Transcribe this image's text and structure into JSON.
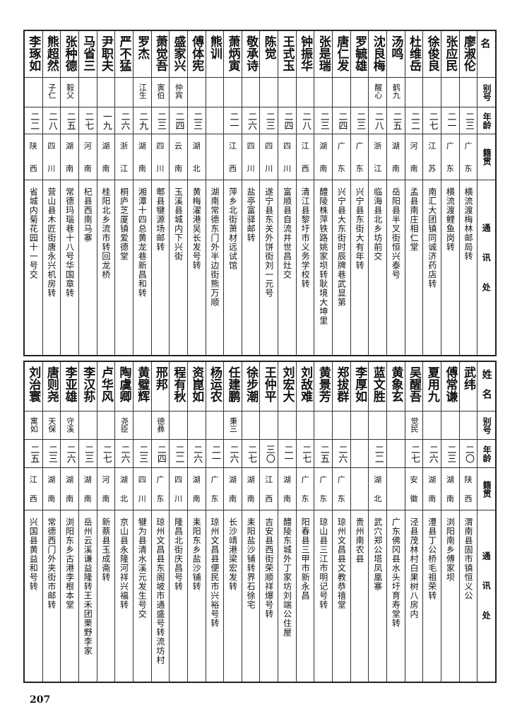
{
  "header": {
    "name": "姓名",
    "alias": "别号",
    "age": "年龄",
    "native": "籍贯",
    "address": "通讯处"
  },
  "tables": [
    {
      "rows": [
        {
          "name": "廖淑伦",
          "alias": "",
          "age": "二三",
          "native": [
            "广",
            "东"
          ],
          "address": "横流渡梅林邮局转"
        },
        {
          "name": "张应民",
          "alias": "",
          "age": "二一",
          "native": [
            "广",
            "东"
          ],
          "address": "横流渡鲤鱼岗转"
        },
        {
          "name": "徐俊良",
          "alias": "",
          "age": "二七",
          "native": [
            "江",
            "苏"
          ],
          "address": "南汇大团镇同诚济药店转"
        },
        {
          "name": "杜维岳",
          "alias": "",
          "age": "二二",
          "native": [
            "河",
            "南"
          ],
          "address": "孟县南庄相仁堂"
        },
        {
          "name": "汤鸣",
          "alias": "鹤九",
          "age": "二五",
          "native": [
            "湖",
            "南"
          ],
          "address": "岳阳县半叉街恒兴泰号"
        },
        {
          "name": "沈良梅",
          "alias": "醒心",
          "age": "二八",
          "native": [
            "浙",
            "江"
          ],
          "address": "临海县北乡坊前交"
        },
        {
          "name": "罗毓雄",
          "alias": "",
          "age": "二三",
          "native": [
            "广",
            "东"
          ],
          "address": "兴宁县东街大有年转"
        },
        {
          "name": "唐仁发",
          "alias": "",
          "age": "二四",
          "native": [
            "广",
            "东"
          ],
          "address": "兴宁县大东街时辰牌巷武显第"
        },
        {
          "name": "张是瑞",
          "alias": "",
          "age": "二三",
          "native": [
            "湖",
            "南"
          ],
          "address": "醴陵株萍铁路姚家坝转耿境大坤里"
        },
        {
          "name": "钟振华",
          "alias": "",
          "age": "二八",
          "native": [
            "江",
            "西"
          ],
          "address": "清江县黎圩市义务学校转"
        },
        {
          "name": "王式玉",
          "alias": "",
          "age": "二四",
          "native": [
            "四",
            "川"
          ],
          "address": "富顺县自流井世昌灶交"
        },
        {
          "name": "陈觉",
          "alias": "",
          "age": "二三",
          "native": [
            "四",
            "川"
          ],
          "address": "遂宁县东关外饼街刘一元号"
        },
        {
          "name": "敬承诗",
          "alias": "",
          "age": "二六",
          "native": [
            "四",
            "川"
          ],
          "address": "盐亭富驿邮转"
        },
        {
          "name": "萧炳寅",
          "alias": "",
          "age": "二一",
          "native": [
            "江",
            "西"
          ],
          "address": "萍乡北街萧材远试馆"
        },
        {
          "name": "熊训",
          "alias": "",
          "age": "",
          "native": [
            "",
            ""
          ],
          "address": "湖南常德东门外半边街熊万顺"
        },
        {
          "name": "傅体宪",
          "alias": "",
          "age": "二三",
          "native": [
            "湖",
            "北"
          ],
          "address": "黄梅濯港吴长发号转"
        },
        {
          "name": "盛家兴",
          "alias": "仲宾",
          "age": "二四",
          "native": [
            "云",
            "南"
          ],
          "address": "玉溪县城内下兴街"
        },
        {
          "name": "萧觉吾",
          "alias": "寅伯",
          "age": "二三",
          "native": [
            "四",
            "川"
          ],
          "address": "郫县犍源场邮转"
        },
        {
          "name": "罗杰",
          "alias": "江生",
          "age": "二九",
          "native": [
            "湖",
            "南"
          ],
          "address": "湘潭十四总黄龙巷新昌和转"
        },
        {
          "name": "严不猛",
          "alias": "",
          "age": "二六",
          "native": [
            "浙",
            "江"
          ],
          "address": "桐庐芝厦镇爱德堂"
        },
        {
          "name": "尹职夫",
          "alias": "",
          "age": "一九",
          "native": [
            "湖",
            "南"
          ],
          "address": "桂阳北乡流市转回龙桥"
        },
        {
          "name": "马省三",
          "alias": "",
          "age": "二七",
          "native": [
            "河",
            "南"
          ],
          "address": "杞县西南马寨"
        },
        {
          "name": "张种德",
          "alias": "毅父",
          "age": "二五",
          "native": [
            "湖",
            "南"
          ],
          "address": "常德玛瑙巷十八号华国章转"
        },
        {
          "name": "熊超然",
          "alias": "子仁",
          "age": "二八",
          "native": [
            "四",
            "川"
          ],
          "address": "营山县木匠街唐永兴机房转"
        },
        {
          "name": "李琢如",
          "alias": "",
          "age": "二二",
          "native": [
            "陕",
            "西"
          ],
          "address": "省城内菊花园十一号交"
        }
      ]
    },
    {
      "rows": [
        {
          "name": "武纬",
          "alias": "",
          "age": "二〇",
          "native": [
            "陕",
            "西"
          ],
          "address": "渭南县固市镇恒义公"
        },
        {
          "name": "傅常谦",
          "alias": "",
          "age": "二三",
          "native": [
            "湖",
            "南"
          ],
          "address": "浏阳南乡傅家坝"
        },
        {
          "name": "夏用九",
          "alias": "",
          "age": "二六",
          "native": [
            "湖",
            "南"
          ],
          "address": "澧县丁公桥毛祖荣转"
        },
        {
          "name": "吴醒吾",
          "alias": "觉民",
          "age": "二七",
          "native": [
            "安",
            "徽"
          ],
          "address": "泾县茂林村白果树八房内"
        },
        {
          "name": "黄象玄",
          "alias": "",
          "age": "",
          "native": [
            "",
            ""
          ],
          "address": "广东佛冈县水头圩育寿堂转"
        },
        {
          "name": "蓝文胜",
          "alias": "",
          "age": "二二",
          "native": [
            "湖",
            "北"
          ],
          "address": "武穴郑公塔凤凰寨"
        },
        {
          "name": "李厚如",
          "alias": "",
          "age": "",
          "native": [
            "",
            ""
          ],
          "address": "贵州南农县"
        },
        {
          "name": "郑拔群",
          "alias": "",
          "age": "二六",
          "native": [
            "广",
            "东"
          ],
          "address": "琼州文昌县文教恭禧堂"
        },
        {
          "name": "黄景芳",
          "alias": "",
          "age": "二五",
          "native": [
            "广",
            "东"
          ],
          "address": "琼山县三江市明记号转"
        },
        {
          "name": "刘敌难",
          "alias": "",
          "age": "二七",
          "native": [
            "广",
            "东"
          ],
          "address": "阳春县三甲市新永昌"
        },
        {
          "name": "刘宏大",
          "alias": "",
          "age": "二一",
          "native": [
            "湖",
            "南"
          ],
          "address": "醴陵东城外丁家坊刘端公住屋"
        },
        {
          "name": "王仲平",
          "alias": "",
          "age": "三〇",
          "native": [
            "江",
            "西"
          ],
          "address": "吉安县西街荣顺祥爆号转"
        },
        {
          "name": "徐步潮",
          "alias": "",
          "age": "二七",
          "native": [
            "湖",
            "南"
          ],
          "address": "耒阳盐沙铺转界石徐宅"
        },
        {
          "name": "任建鹏",
          "alias": "秉三",
          "age": "二六",
          "native": [
            "湖",
            "南"
          ],
          "address": "长沙靖港梁宏发转"
        },
        {
          "name": "杨运农",
          "alias": "",
          "age": "二一",
          "native": [
            "广",
            "东"
          ],
          "address": "琼州文昌县便民市兴裕号转"
        },
        {
          "name": "资崑如",
          "alias": "",
          "age": "二六",
          "native": [
            "湖",
            "南"
          ],
          "address": "耒阳东乡盐沙铺转"
        },
        {
          "name": "程有秋",
          "alias": "",
          "age": "二二",
          "native": [
            "四",
            "川"
          ],
          "address": "隆昌北街庆昌号转"
        },
        {
          "name": "邢邦",
          "alias": "德彝",
          "age": "二四",
          "native": [
            "广",
            "东"
          ],
          "address": "琼州文昌县东阁坡市通盛号转流坊村"
        },
        {
          "name": "黄璧辉",
          "alias": "",
          "age": "二三",
          "native": [
            "四",
            "川"
          ],
          "address": "犍为县清水溪元发生号交"
        },
        {
          "name": "陶虞卿",
          "alias": "尧臣",
          "age": "二六",
          "native": [
            "湖",
            "北"
          ],
          "address": "京山县永隆河祥兴福转"
        },
        {
          "name": "卢华风",
          "alias": "",
          "age": "二七",
          "native": [
            "河",
            "南"
          ],
          "address": "新蔡县玉成斋转"
        },
        {
          "name": "李汉荪",
          "alias": "",
          "age": "二三",
          "native": [
            "湖",
            "南"
          ],
          "address": "岳州云溪谦益隆转王禾团栗野李家"
        },
        {
          "name": "李亚雄",
          "alias": "守溪",
          "age": "二六",
          "native": [
            "湖",
            "南"
          ],
          "address": "浏阳东乡古港李根本堂"
        },
        {
          "name": "唐则尧",
          "alias": "天保",
          "age": "二三",
          "native": [
            "湖",
            "南"
          ],
          "address": "常德西门外夹街市邮转"
        },
        {
          "name": "刘治寰",
          "alias": "寓如",
          "age": "二五",
          "native": [
            "江",
            "西"
          ],
          "address": "兴国县黄益和号转"
        }
      ]
    }
  ],
  "page_number": "207"
}
